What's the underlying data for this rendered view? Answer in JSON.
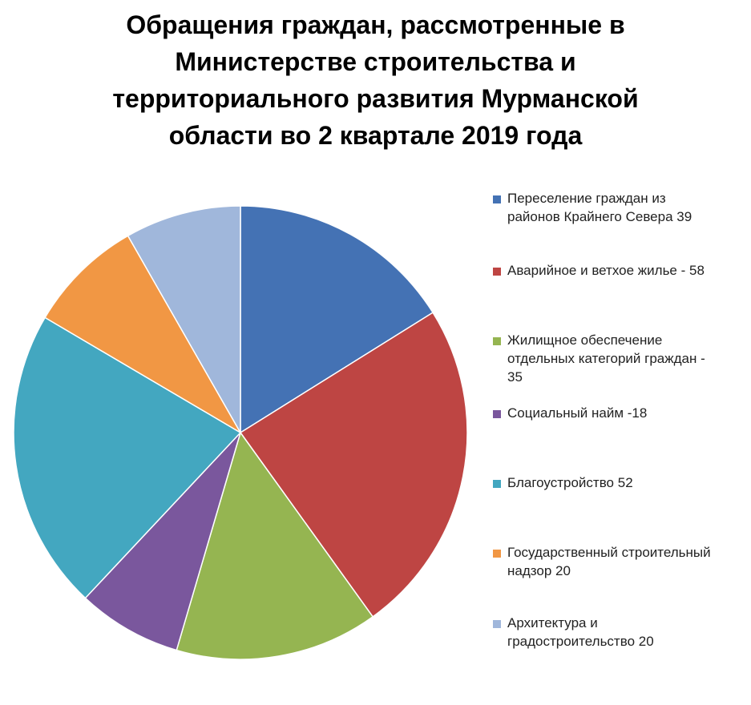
{
  "chart_data": {
    "type": "pie",
    "title": "Обращения граждан, рассмотренные в\nМинистерстве строительства и\nтерриториального развития Мурманской\nобласти во 2 квартале 2019 года",
    "legend_position": "right",
    "slices": [
      {
        "label": "Переселение граждан из\nрайонов Крайнего Севера  39",
        "value": 39,
        "color": "#4472B4"
      },
      {
        "label": "Аварийное и ветхое жилье - 58",
        "value": 58,
        "color": "#BE4543"
      },
      {
        "label": "Жилищное обеспечение\nотдельных категорий граждан -\n35",
        "value": 35,
        "color": "#95B551"
      },
      {
        "label": "Социальный найм -18",
        "value": 18,
        "color": "#7A579D"
      },
      {
        "label": "Благоустройство 52",
        "value": 52,
        "color": "#43A7C0"
      },
      {
        "label": "Государственный строительный\nнадзор 20",
        "value": 20,
        "color": "#F19744"
      },
      {
        "label": "Архитектура и\nградостроительство   20",
        "value": 20,
        "color": "#A0B7DB"
      }
    ]
  }
}
